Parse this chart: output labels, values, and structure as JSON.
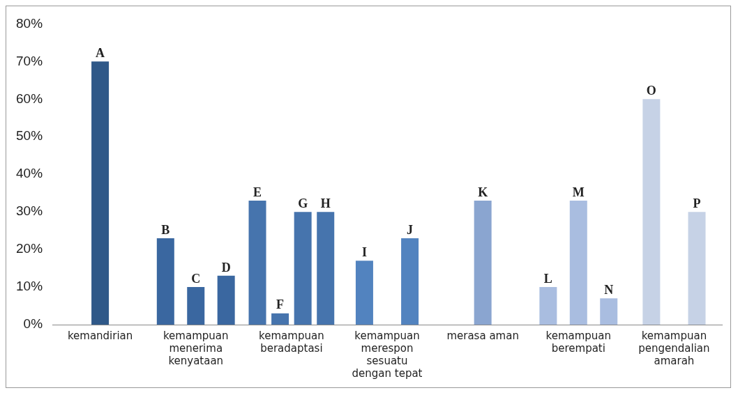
{
  "chart_data": {
    "type": "bar",
    "categories": [
      "kemandirian",
      "kemampuan menerima kenyataan",
      "kemampuan beradaptasi",
      "kemampuan merespon sesuatu dengan tepat",
      "merasa aman",
      "kemampuan berempati",
      "kemampuan pengendalian amarah"
    ],
    "series": [
      {
        "colors": [
          "#2f5888",
          "#3a67a0",
          "#4674ad",
          "#5283bf",
          "#8aa5d0",
          "#a9bde0",
          "#c6d2e6"
        ],
        "values": [
          70,
          23,
          33,
          17,
          33,
          10,
          60
        ],
        "value_labels": [
          "A",
          "B",
          "E",
          "I",
          "K",
          "L",
          "O"
        ]
      },
      {
        "colors": [
          "#2f5888",
          "#3a67a0",
          "#4674ad",
          "#5283bf",
          "#8aa5d0",
          "#a9bde0",
          "#c6d2e6"
        ],
        "values": [
          null,
          10,
          3,
          23,
          null,
          33,
          30
        ],
        "value_labels": [
          null,
          "C",
          "F",
          "J",
          null,
          "M",
          "P"
        ]
      },
      {
        "colors": [
          "#2f5888",
          "#3a67a0",
          "#4674ad",
          "#5283bf",
          "#8aa5d0",
          "#a9bde0",
          "#c6d2e6"
        ],
        "values": [
          null,
          13,
          30,
          null,
          null,
          7,
          null
        ],
        "value_labels": [
          null,
          "D",
          "G",
          null,
          null,
          "N",
          null
        ]
      },
      {
        "colors": [
          "#2f5888",
          "#3a67a0",
          "#4674ad",
          "#5283bf",
          "#8aa5d0",
          "#a9bde0",
          "#c6d2e6"
        ],
        "values": [
          null,
          null,
          30,
          null,
          null,
          null,
          null
        ],
        "value_labels": [
          null,
          null,
          "H",
          null,
          null,
          null,
          null
        ]
      }
    ],
    "ylim": [
      0,
      80
    ],
    "yticks": [
      {
        "value": 0,
        "label": "0%"
      },
      {
        "value": 10,
        "label": "10%"
      },
      {
        "value": 20,
        "label": "20%"
      },
      {
        "value": 30,
        "label": "30%"
      },
      {
        "value": 40,
        "label": "40%"
      },
      {
        "value": 50,
        "label": "50%"
      },
      {
        "value": 60,
        "label": "60%"
      },
      {
        "value": 70,
        "label": "70%"
      },
      {
        "value": 80,
        "label": "80%"
      }
    ],
    "grid": false,
    "legend": false
  }
}
